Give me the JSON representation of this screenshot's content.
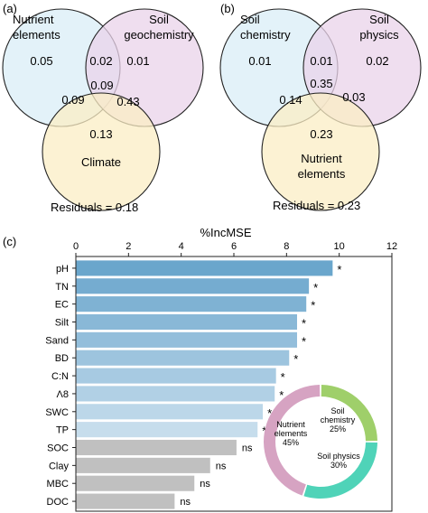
{
  "panel_a": {
    "label": "(a)",
    "sets": [
      "Nutrient elements",
      "Soil geochemistry",
      "Climate"
    ],
    "set_label_lines": [
      [
        "Nutrient",
        "elements"
      ],
      [
        "Soil",
        "geochemistry"
      ],
      [
        "Climate"
      ]
    ],
    "colors": [
      "#d9eef7",
      "#ead3ea",
      "#fbeec4"
    ],
    "regions": {
      "only_1": "0.05",
      "only_2": "0.01",
      "only_3": "0.13",
      "r12": "0.02",
      "r13": "0.09",
      "r23": "0.43",
      "r123": "0.09"
    },
    "residuals": "Residuals = 0.18"
  },
  "panel_b": {
    "label": "(b)",
    "sets": [
      "Soil chemistry",
      "Soil physics",
      "Nutrient elements"
    ],
    "set_label_lines": [
      [
        "Soil",
        "chemistry"
      ],
      [
        "Soil",
        "physics"
      ],
      [
        "Nutrient",
        "elements"
      ]
    ],
    "colors": [
      "#d9eef7",
      "#ead3ea",
      "#fbeec4"
    ],
    "regions": {
      "only_1": "0.01",
      "only_2": "0.02",
      "only_3": "0.23",
      "r12": "0.01",
      "r13": "0.14",
      "r23": "0.03",
      "r123": "0.35"
    },
    "residuals": "Residuals = 0.23"
  },
  "panel_c": {
    "label": "(c)"
  },
  "chart_data": {
    "type": "bar",
    "orientation": "horizontal",
    "title": "%IncMSE",
    "xlim": [
      0,
      12
    ],
    "xticks": [
      0,
      2,
      4,
      6,
      8,
      10,
      12
    ],
    "categories": [
      "pH",
      "TN",
      "EC",
      "Silt",
      "Sand",
      "BD",
      "C:N",
      "Λ8",
      "SWC",
      "TP",
      "SOC",
      "Clay",
      "MBC",
      "DOC"
    ],
    "values": [
      9.75,
      8.85,
      8.75,
      8.4,
      8.4,
      8.1,
      7.6,
      7.55,
      7.1,
      6.9,
      6.1,
      5.1,
      4.5,
      3.75
    ],
    "significance": [
      "*",
      "*",
      "*",
      "*",
      "*",
      "*",
      "*",
      "*",
      "*",
      "*",
      "ns",
      "ns",
      "ns",
      "ns"
    ],
    "bar_colors": [
      "#6aa6cc",
      "#75acd0",
      "#7fb2d3",
      "#89b8d7",
      "#93bedb",
      "#9dc4de",
      "#a7cae2",
      "#b1d0e5",
      "#bcd7e9",
      "#c6ddec",
      "#c0c0c0",
      "#c0c0c0",
      "#c0c0c0",
      "#c0c0c0"
    ],
    "grid": false,
    "inset_donut": {
      "type": "pie",
      "labels": [
        [
          "Soil",
          "chemistry",
          "25%"
        ],
        [
          "Soil physics",
          "30%"
        ],
        [
          "Nutrient",
          "elements",
          "45%"
        ]
      ],
      "values": [
        25,
        30,
        45
      ],
      "colors": [
        "#9fcf6a",
        "#4fd3b8",
        "#d6a3c2"
      ]
    }
  }
}
